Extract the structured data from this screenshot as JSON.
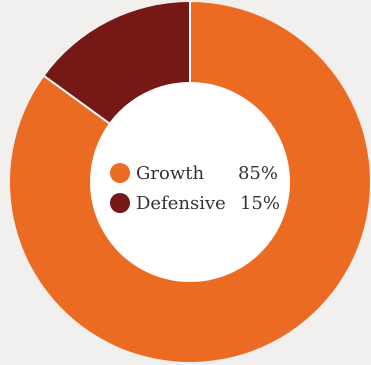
{
  "chart_data": {
    "type": "pie",
    "variant": "donut",
    "slices": [
      {
        "label": "Growth",
        "value": 85,
        "value_label": "85%",
        "color": "#ec6b22"
      },
      {
        "label": "Defensive",
        "value": 15,
        "value_label": "15%",
        "color": "#761816"
      }
    ],
    "start_angle_deg": 0,
    "direction": "clockwise",
    "legend_position": "center",
    "background": "#f1f0ee",
    "separator_color": "#ffffff"
  }
}
